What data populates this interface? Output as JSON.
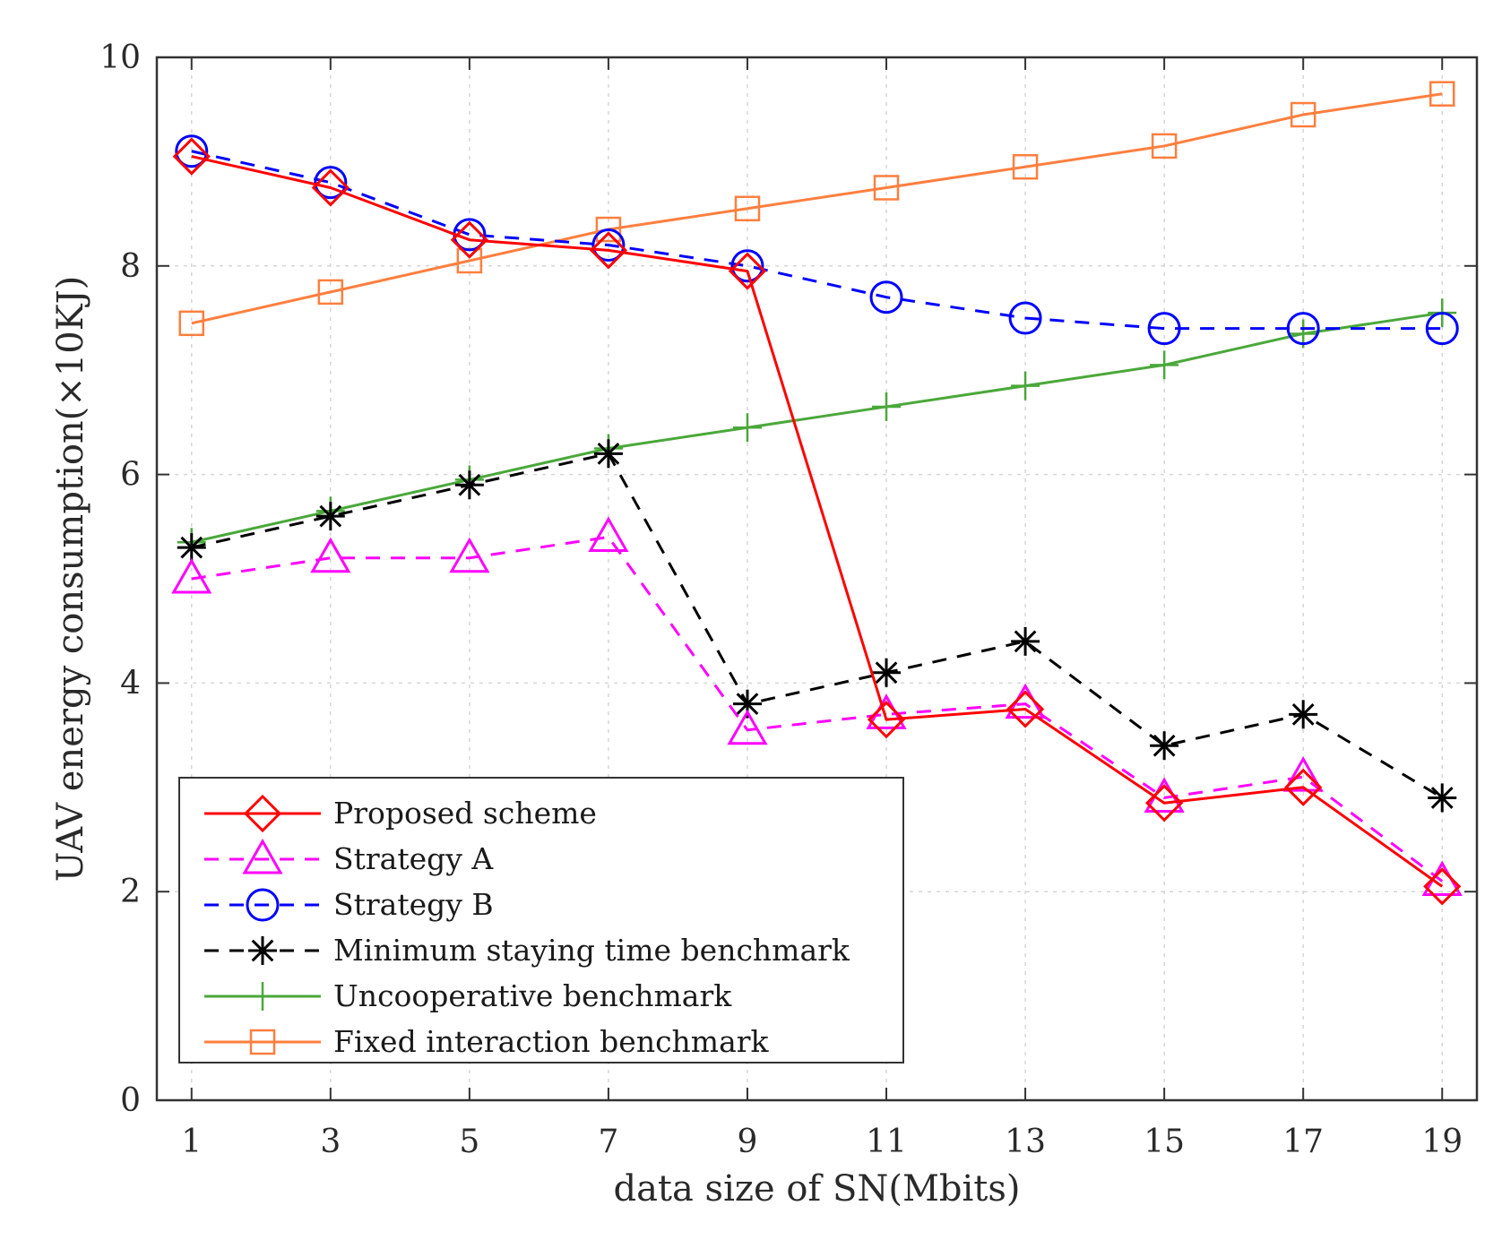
{
  "chart_data": {
    "type": "line",
    "title": "",
    "xlabel": "data size of SN(Mbits)",
    "ylabel": "UAV energy consumption(×10KJ)",
    "x": [
      1,
      3,
      5,
      7,
      9,
      11,
      13,
      15,
      17,
      19
    ],
    "xlim": [
      0.5,
      19.5
    ],
    "ylim": [
      0,
      10
    ],
    "xticks": [
      "1",
      "3",
      "5",
      "7",
      "9",
      "11",
      "13",
      "15",
      "17",
      "19"
    ],
    "yticks": [
      "0",
      "2",
      "4",
      "6",
      "8",
      "10"
    ],
    "grid": true,
    "legend_position": "bottom-left",
    "series": [
      {
        "name": "Proposed scheme",
        "color": "#ff0000",
        "dash": "solid",
        "marker": "diamond",
        "values": [
          9.05,
          8.75,
          8.25,
          8.15,
          7.95,
          3.65,
          3.75,
          2.85,
          3.0,
          2.05
        ]
      },
      {
        "name": "Strategy A",
        "color": "#ff00ff",
        "dash": "dashed",
        "marker": "triangle",
        "values": [
          5.0,
          5.2,
          5.2,
          5.4,
          3.55,
          3.7,
          3.8,
          2.9,
          3.1,
          2.1
        ]
      },
      {
        "name": "Strategy B",
        "color": "#0000ff",
        "dash": "dashed",
        "marker": "circle",
        "values": [
          9.1,
          8.8,
          8.3,
          8.2,
          8.0,
          7.7,
          7.5,
          7.4,
          7.4,
          7.4
        ]
      },
      {
        "name": "Minimum staying time benchmark",
        "color": "#000000",
        "dash": "dashed",
        "marker": "star",
        "values": [
          5.3,
          5.6,
          5.9,
          6.2,
          3.8,
          4.1,
          4.4,
          3.4,
          3.7,
          2.9
        ]
      },
      {
        "name": "Uncooperative benchmark",
        "color": "#4aa83a",
        "dash": "solid",
        "marker": "plus",
        "values": [
          5.35,
          5.65,
          5.95,
          6.25,
          6.45,
          6.65,
          6.85,
          7.05,
          7.35,
          7.55
        ]
      },
      {
        "name": "Fixed interaction benchmark",
        "color": "#ff7f3f",
        "dash": "solid",
        "marker": "square",
        "values": [
          7.45,
          7.75,
          8.05,
          8.35,
          8.55,
          8.75,
          8.95,
          9.15,
          9.45,
          9.65
        ]
      }
    ]
  }
}
